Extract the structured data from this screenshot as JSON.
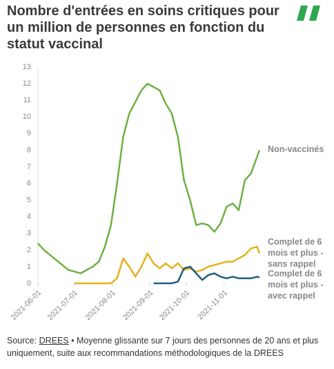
{
  "chart_data": {
    "type": "line",
    "title": "Nombre d'entrées en soins critiques pour un million de personnes en fonction du statut vaccinal",
    "x": [
      "2021-06-01",
      "2021-06-06",
      "2021-06-11",
      "2021-06-16",
      "2021-06-21",
      "2021-06-26",
      "2021-07-01",
      "2021-07-06",
      "2021-07-11",
      "2021-07-16",
      "2021-07-21",
      "2021-07-26",
      "2021-07-31",
      "2021-08-05",
      "2021-08-10",
      "2021-08-15",
      "2021-08-20",
      "2021-08-25",
      "2021-08-30",
      "2021-09-04",
      "2021-09-09",
      "2021-09-14",
      "2021-09-19",
      "2021-09-24",
      "2021-09-29",
      "2021-10-04",
      "2021-10-09",
      "2021-10-14",
      "2021-10-19",
      "2021-10-24",
      "2021-10-29",
      "2021-11-03",
      "2021-11-08",
      "2021-11-13",
      "2021-11-18",
      "2021-11-23",
      "2021-11-28",
      "2021-11-30"
    ],
    "series": [
      {
        "name": "Non-vaccinés",
        "color": "#6db043",
        "values": [
          2.4,
          2.0,
          1.7,
          1.4,
          1.1,
          0.8,
          0.7,
          0.6,
          0.8,
          1.0,
          1.3,
          2.2,
          3.5,
          6.0,
          8.8,
          10.2,
          10.9,
          11.6,
          12.0,
          11.8,
          11.6,
          10.8,
          10.2,
          8.8,
          6.2,
          5.0,
          3.5,
          3.6,
          3.5,
          3.1,
          3.6,
          4.6,
          4.8,
          4.4,
          6.2,
          6.6,
          7.6,
          8.0
        ]
      },
      {
        "name": "Complet de 6 mois et plus - sans rappel",
        "color": "#e6b01e",
        "values": [
          null,
          null,
          null,
          null,
          null,
          null,
          0,
          0,
          0,
          0,
          0,
          0,
          0,
          0.3,
          1.5,
          1.0,
          0.4,
          1.0,
          1.8,
          1.2,
          0.9,
          1.2,
          0.9,
          1.2,
          0.8,
          0.9,
          0.7,
          0.8,
          1.0,
          1.1,
          1.2,
          1.3,
          1.3,
          1.5,
          1.7,
          2.1,
          2.2,
          1.8
        ]
      },
      {
        "name": "Complet de 6 mois et plus - avec rappel",
        "color": "#1d5f80",
        "values": [
          null,
          null,
          null,
          null,
          null,
          null,
          null,
          null,
          null,
          null,
          null,
          null,
          null,
          null,
          null,
          null,
          null,
          null,
          null,
          0,
          0,
          0,
          0,
          0.1,
          0.9,
          1.0,
          0.6,
          0.2,
          0.5,
          0.6,
          0.4,
          0.3,
          0.4,
          0.3,
          0.3,
          0.3,
          0.4,
          0.35
        ]
      }
    ],
    "xlim": [
      "2021-06-01",
      "2021-11-30"
    ],
    "xticks": [
      "2021-06-01",
      "2021-07-01",
      "2021-08-01",
      "2021-09-01",
      "2021-10-01",
      "2021-11-01"
    ],
    "ylim": [
      0,
      13
    ],
    "yticks": [
      0,
      1,
      2,
      3,
      4,
      5,
      6,
      7,
      8,
      9,
      10,
      11,
      12,
      13
    ],
    "grid": false,
    "source_label": "Source:",
    "source_link": "DREES",
    "source_text": "• Moyenne glissante sur 7 jours des personnes de 20 ans et plus uniquement, suite aux recommandations méthodologiques de la DREES"
  }
}
